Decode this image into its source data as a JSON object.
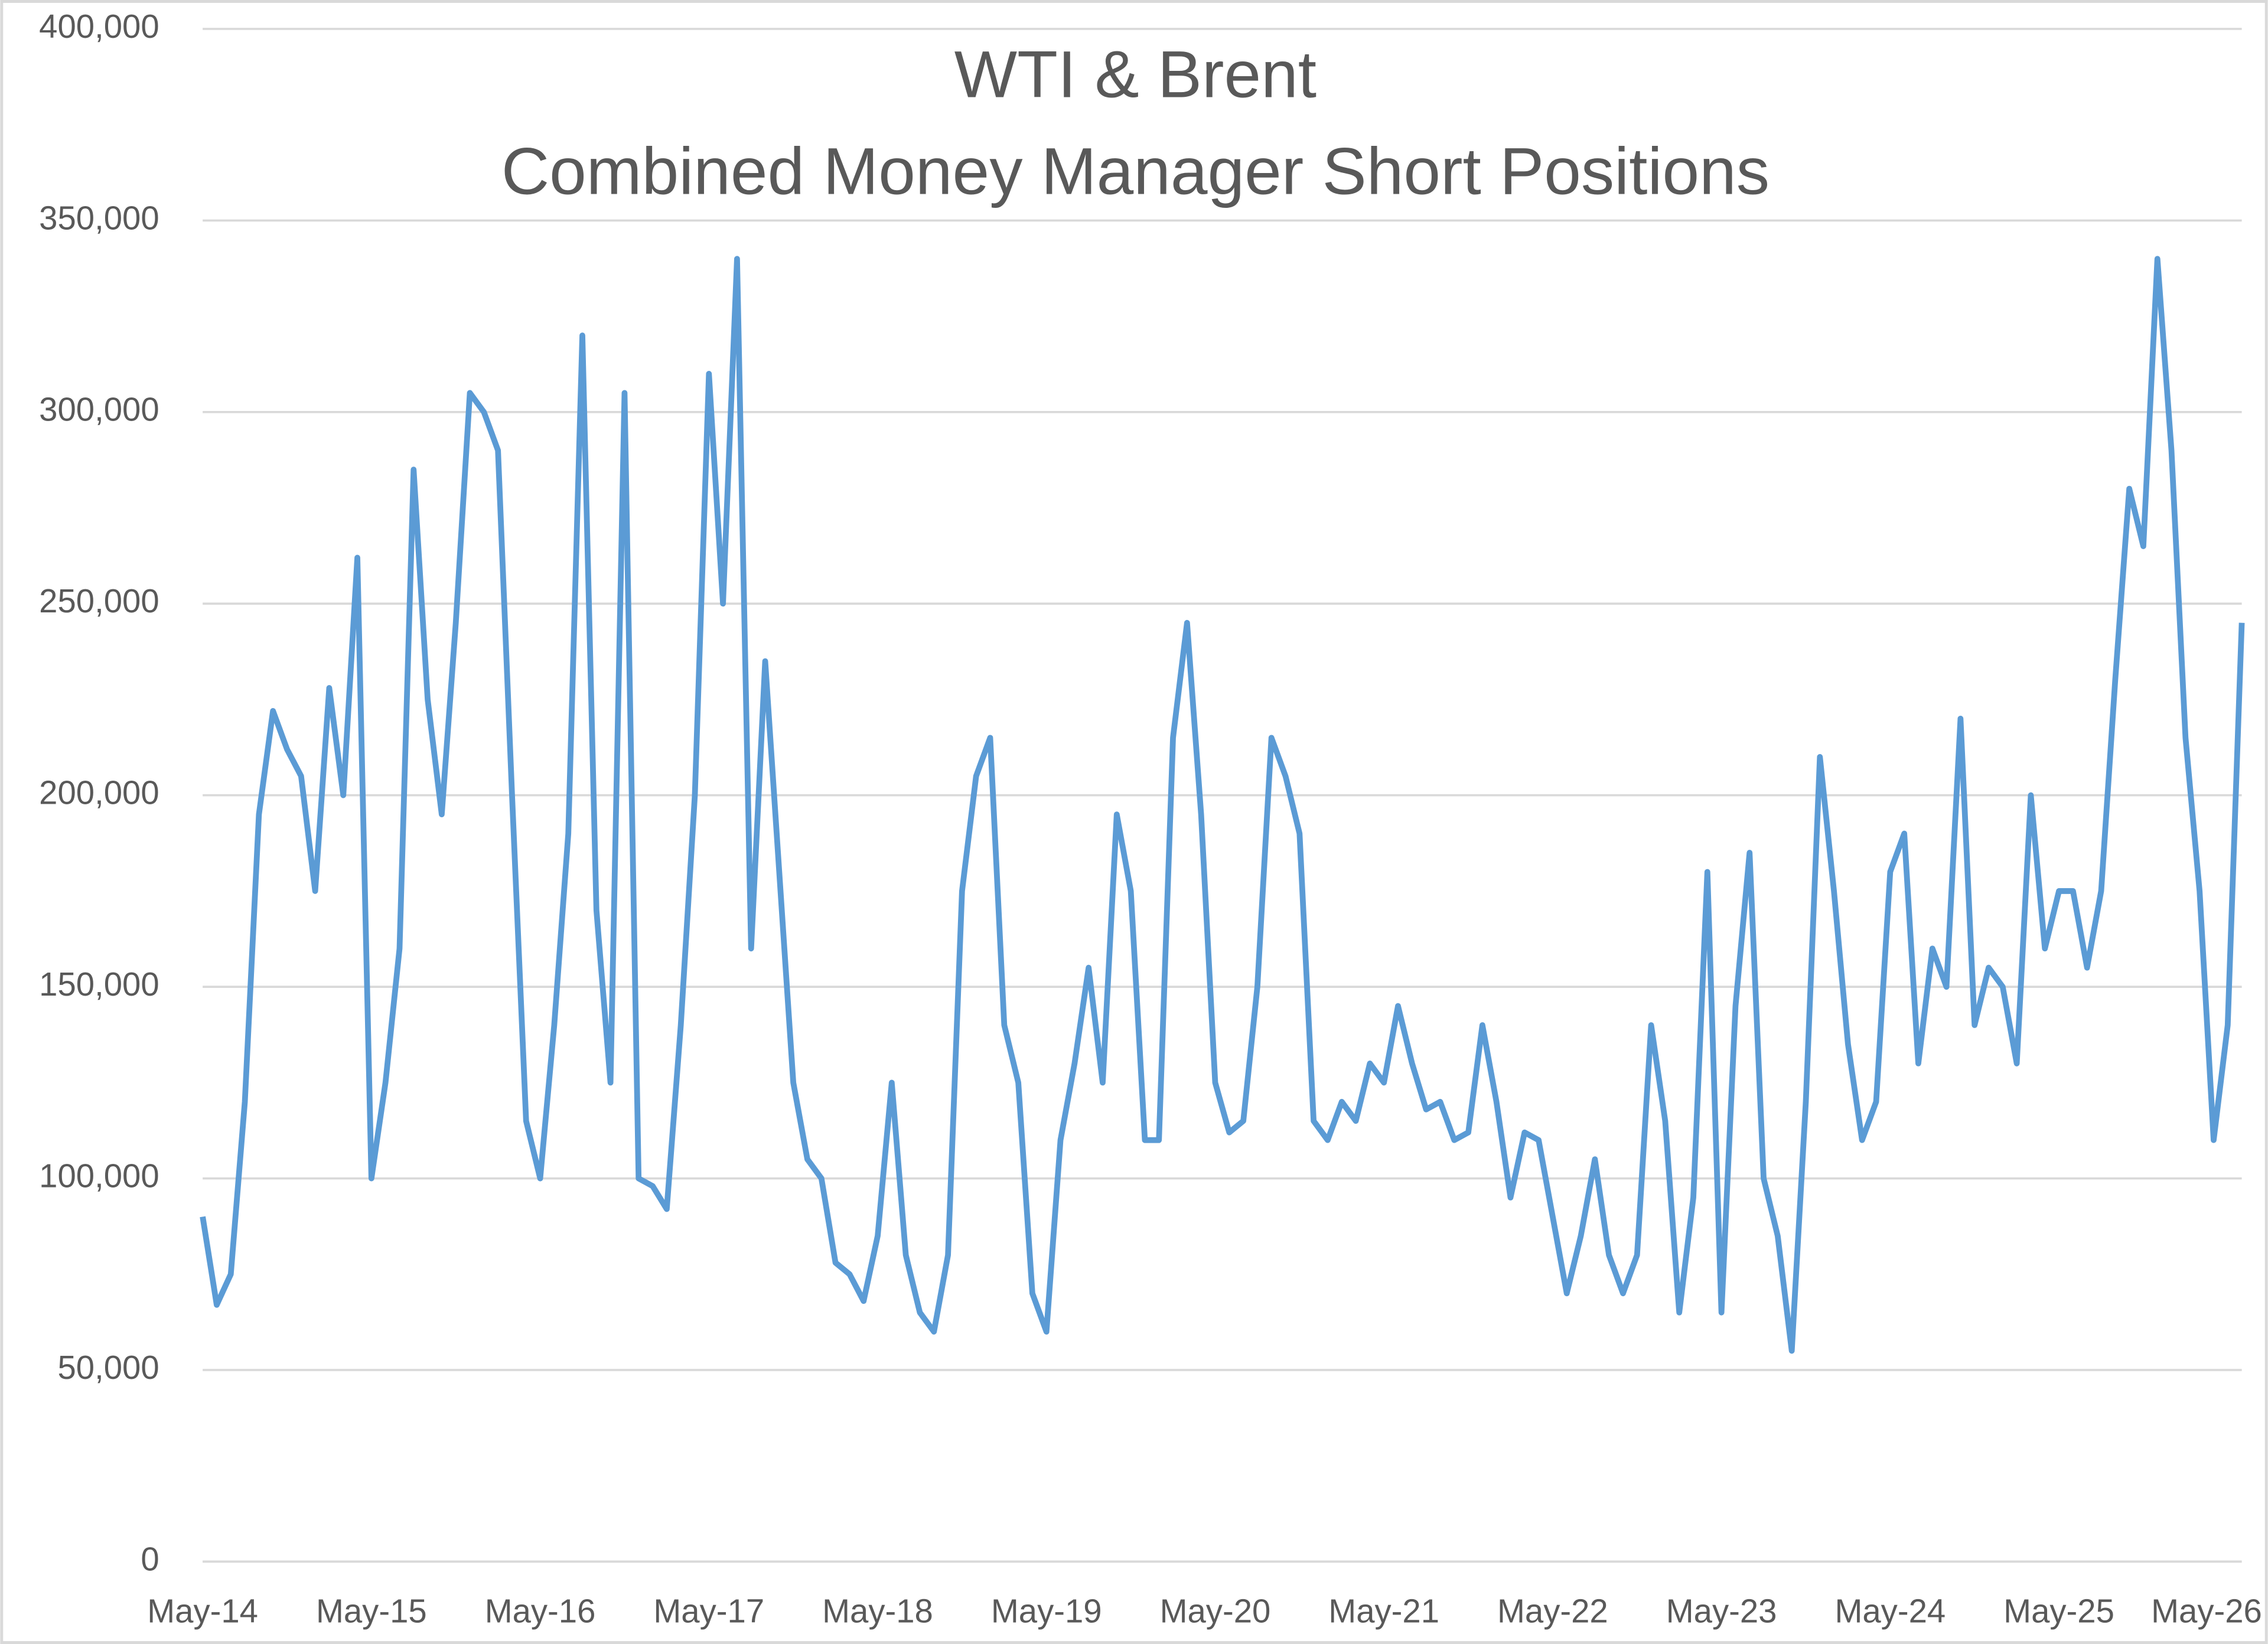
{
  "chart_data": {
    "type": "line",
    "title": "WTI & Brent",
    "subtitle": "Combined Money Manager Short Positions",
    "categories": [
      "May-14",
      null,
      null,
      null,
      null,
      null,
      null,
      null,
      null,
      null,
      null,
      null,
      "May-15",
      null,
      null,
      null,
      null,
      null,
      null,
      null,
      null,
      null,
      null,
      null,
      "May-16",
      null,
      null,
      null,
      null,
      null,
      null,
      null,
      null,
      null,
      null,
      null,
      "May-17",
      null,
      null,
      null,
      null,
      null,
      null,
      null,
      null,
      null,
      null,
      null,
      "May-18",
      null,
      null,
      null,
      null,
      null,
      null,
      null,
      null,
      null,
      null,
      null,
      "May-19",
      null,
      null,
      null,
      null,
      null,
      null,
      null,
      null,
      null,
      null,
      null,
      "May-20",
      null,
      null,
      null,
      null,
      null,
      null,
      null,
      null,
      null,
      null,
      null,
      "May-21",
      null,
      null,
      null,
      null,
      null,
      null,
      null,
      null,
      null,
      null,
      null,
      "May-22",
      null,
      null,
      null,
      null,
      null,
      null,
      null,
      null,
      null,
      null,
      null,
      "May-23",
      null,
      null,
      null,
      null,
      null,
      null,
      null,
      null,
      null,
      null,
      null,
      "May-24",
      null,
      null,
      null,
      null,
      null,
      null,
      null,
      null,
      null,
      null,
      null,
      "May-25",
      null,
      null,
      null,
      null,
      null,
      null,
      null,
      null,
      null,
      null,
      null,
      "May-26",
      null
    ],
    "series": [
      {
        "color": "#5b9bd5",
        "values": [
          90000,
          67000,
          75000,
          120000,
          195000,
          222000,
          212000,
          205000,
          175000,
          228000,
          200000,
          262000,
          100000,
          125000,
          160000,
          285000,
          225000,
          195000,
          245000,
          305000,
          300000,
          290000,
          200000,
          115000,
          100000,
          140000,
          190000,
          320000,
          170000,
          125000,
          305000,
          100000,
          98000,
          92000,
          140000,
          200000,
          310000,
          250000,
          340000,
          160000,
          235000,
          180000,
          125000,
          105000,
          100000,
          78000,
          75000,
          68000,
          85000,
          125000,
          80000,
          65000,
          60000,
          80000,
          175000,
          205000,
          215000,
          140000,
          125000,
          70000,
          60000,
          110000,
          130000,
          155000,
          125000,
          195000,
          175000,
          110000,
          110000,
          215000,
          245000,
          195000,
          125000,
          112000,
          115000,
          150000,
          215000,
          205000,
          190000,
          115000,
          110000,
          120000,
          115000,
          130000,
          125000,
          145000,
          130000,
          118000,
          120000,
          110000,
          112000,
          140000,
          120000,
          95000,
          112000,
          110000,
          90000,
          70000,
          85000,
          105000,
          80000,
          70000,
          80000,
          140000,
          115000,
          65000,
          95000,
          180000,
          65000,
          145000,
          185000,
          100000,
          85000,
          55000,
          120000,
          210000,
          175000,
          135000,
          110000,
          120000,
          180000,
          190000,
          130000,
          160000,
          150000,
          220000,
          140000,
          155000,
          150000,
          130000,
          200000,
          160000,
          175000,
          175000,
          155000,
          175000,
          230000,
          280000,
          265000,
          340000,
          290000,
          215000,
          175000,
          110000,
          140000,
          245000
        ]
      }
    ],
    "ylim": [
      0,
      400000
    ],
    "yticks": [
      0,
      {
        "value": 50000,
        "label": "50,000"
      },
      {
        "value": 100000,
        "label": "100,000"
      },
      {
        "value": 150000,
        "label": "150,000"
      },
      {
        "value": 200000,
        "label": "200,000"
      },
      {
        "value": 250000,
        "label": "250,000"
      },
      {
        "value": 300000,
        "label": "300,000"
      },
      {
        "value": 350000,
        "label": "350,000"
      },
      {
        "value": 400000,
        "label": "400,000"
      }
    ],
    "grid": true
  }
}
